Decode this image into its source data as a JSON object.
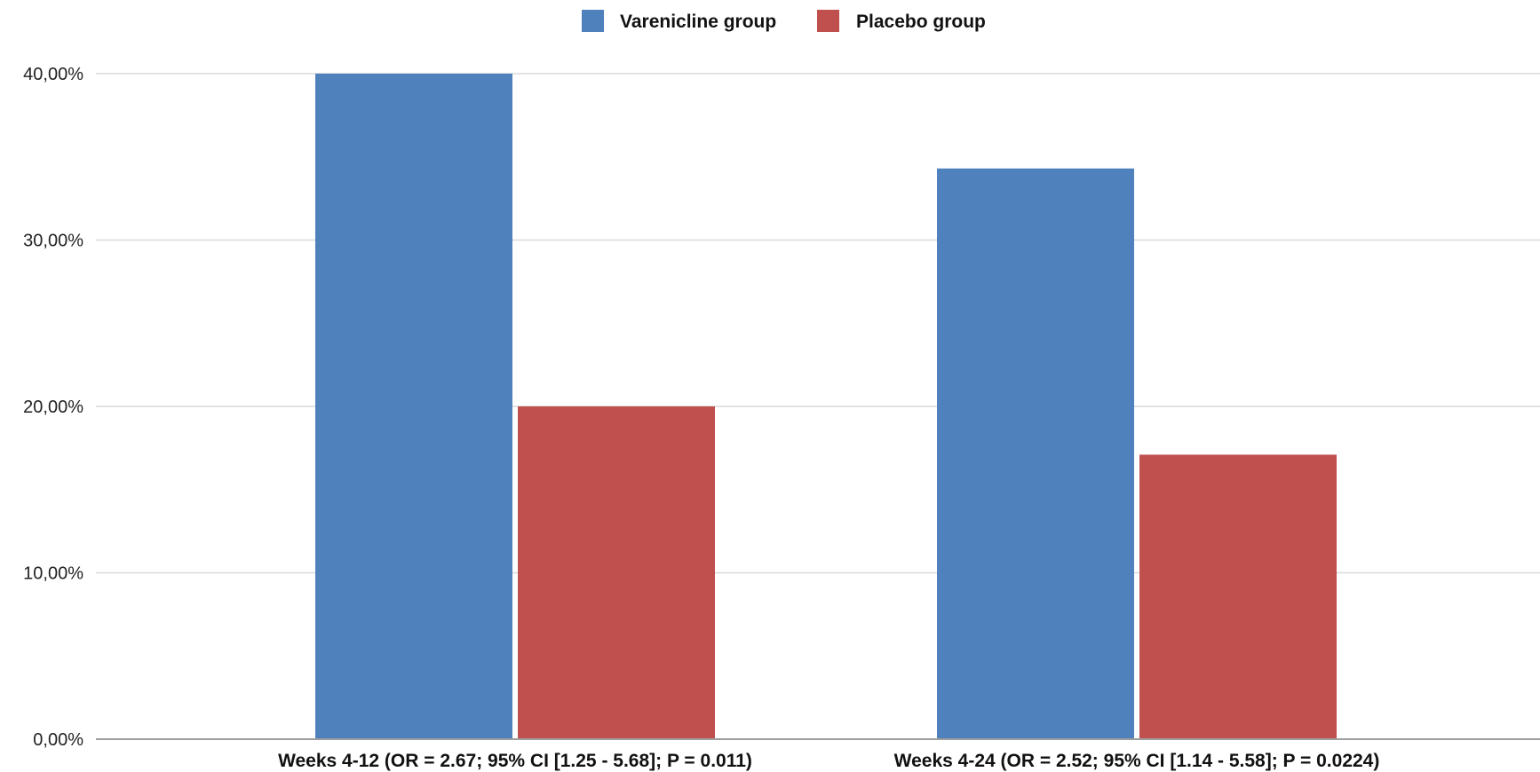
{
  "chart_data": {
    "type": "bar",
    "categories": [
      "Weeks 4-12 (OR = 2.67; 95% CI [1.25 - 5.68]; P = 0.011)",
      "Weeks 4-24 (OR = 2.52; 95% CI [1.14 - 5.58]; P = 0.0224)"
    ],
    "series": [
      {
        "name": "Varenicline group",
        "color": "#4f81bd",
        "values": [
          40.0,
          34.3
        ]
      },
      {
        "name": "Placebo group",
        "color": "#c0504d",
        "values": [
          20.0,
          17.1
        ]
      }
    ],
    "ylim": [
      0,
      40
    ],
    "yticks": [
      0,
      10,
      20,
      30,
      40
    ],
    "ytick_labels": [
      "0,00%",
      "10,00%",
      "20,00%",
      "30,00%",
      "40,00%"
    ],
    "grid": true,
    "legend_position": "top-center",
    "title": "",
    "xlabel": "",
    "ylabel": ""
  }
}
